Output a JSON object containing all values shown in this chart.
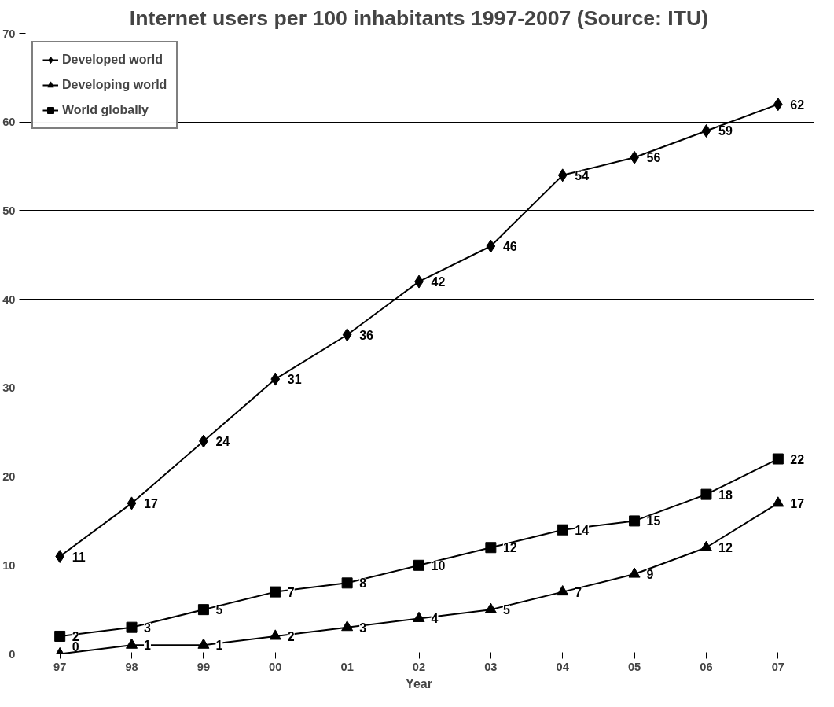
{
  "chart_data": {
    "type": "line",
    "title": "Internet users per 100 inhabitants 1997-2007 (Source: ITU)",
    "xlabel": "Year",
    "categories": [
      "97",
      "98",
      "99",
      "00",
      "01",
      "02",
      "03",
      "04",
      "05",
      "06",
      "07"
    ],
    "series": [
      {
        "name": "Developed world",
        "color": "#000000",
        "marker": "diamond",
        "values": [
          11,
          17,
          24,
          31,
          36,
          42,
          46,
          54,
          56,
          59,
          62
        ]
      },
      {
        "name": "Developing world",
        "color": "#000000",
        "marker": "triangle",
        "values": [
          0,
          1,
          1,
          2,
          3,
          4,
          5,
          7,
          9,
          12,
          17
        ]
      },
      {
        "name": "World globally",
        "color": "#000000",
        "marker": "square",
        "values": [
          2,
          3,
          5,
          7,
          8,
          10,
          12,
          14,
          15,
          18,
          22
        ]
      }
    ],
    "ylim": [
      0,
      70
    ],
    "yticks": [
      0,
      10,
      20,
      30,
      40,
      50,
      60,
      70
    ],
    "grid": "y",
    "legend": "top left",
    "data_labels": true,
    "line_style": "solid"
  }
}
